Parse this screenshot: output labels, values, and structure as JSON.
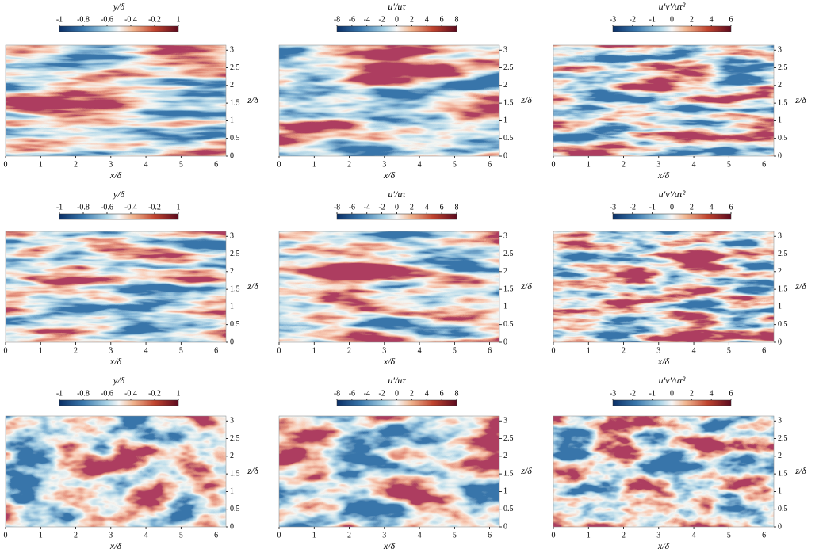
{
  "chart_data": [
    {
      "type": "heatmap",
      "colorbar_title": "y/δ",
      "colorbar_ticks": [
        -1,
        -0.8,
        -0.6,
        -0.4,
        -0.2,
        1
      ],
      "xlabel": "x/δ",
      "ylabel": "z/δ",
      "xlim": [
        0,
        6.28
      ],
      "ylim": [
        0,
        3.14
      ],
      "xticks": [
        0,
        1,
        2,
        3,
        4,
        5,
        6
      ],
      "yticks": [
        0,
        0.5,
        1,
        1.5,
        2,
        2.5,
        3
      ]
    },
    {
      "type": "heatmap",
      "colorbar_title": "u′/uτ",
      "colorbar_ticks": [
        -8,
        -6,
        -4,
        -2,
        0,
        2,
        4,
        6,
        8
      ],
      "xlabel": "x/δ",
      "ylabel": "z/δ",
      "xlim": [
        0,
        6.28
      ],
      "ylim": [
        0,
        3.14
      ],
      "xticks": [
        0,
        1,
        2,
        3,
        4,
        5,
        6
      ],
      "yticks": [
        0,
        0.5,
        1,
        1.5,
        2,
        2.5,
        3
      ]
    },
    {
      "type": "heatmap",
      "colorbar_title": "u′v′/uτ²",
      "colorbar_ticks": [
        -3,
        -2,
        -1,
        0,
        2,
        4,
        6
      ],
      "xlabel": "x/δ",
      "ylabel": "z/δ",
      "xlim": [
        0,
        6.28
      ],
      "ylim": [
        0,
        3.14
      ],
      "xticks": [
        0,
        1,
        2,
        3,
        4,
        5,
        6
      ],
      "yticks": [
        0,
        0.5,
        1,
        1.5,
        2,
        2.5,
        3
      ]
    },
    {
      "type": "heatmap",
      "colorbar_title": "y/δ",
      "colorbar_ticks": [
        -1,
        -0.8,
        -0.6,
        -0.4,
        -0.2,
        1
      ],
      "xlabel": "x/δ",
      "ylabel": "z/δ",
      "xlim": [
        0,
        6.28
      ],
      "ylim": [
        0,
        3.14
      ],
      "xticks": [
        0,
        1,
        2,
        3,
        4,
        5,
        6
      ],
      "yticks": [
        0,
        0.5,
        1,
        1.5,
        2,
        2.5,
        3
      ]
    },
    {
      "type": "heatmap",
      "colorbar_title": "u′/uτ",
      "colorbar_ticks": [
        -8,
        -6,
        -4,
        -2,
        0,
        2,
        4,
        6,
        8
      ],
      "xlabel": "x/δ",
      "ylabel": "z/δ",
      "xlim": [
        0,
        6.28
      ],
      "ylim": [
        0,
        3.14
      ],
      "xticks": [
        0,
        1,
        2,
        3,
        4,
        5,
        6
      ],
      "yticks": [
        0,
        0.5,
        1,
        1.5,
        2,
        2.5,
        3
      ]
    },
    {
      "type": "heatmap",
      "colorbar_title": "u′v′/uτ²",
      "colorbar_ticks": [
        -3,
        -2,
        -1,
        0,
        2,
        4,
        6
      ],
      "xlabel": "x/δ",
      "ylabel": "z/δ",
      "xlim": [
        0,
        6.28
      ],
      "ylim": [
        0,
        3.14
      ],
      "xticks": [
        0,
        1,
        2,
        3,
        4,
        5,
        6
      ],
      "yticks": [
        0,
        0.5,
        1,
        1.5,
        2,
        2.5,
        3
      ]
    },
    {
      "type": "heatmap",
      "colorbar_title": "y/δ",
      "colorbar_ticks": [
        -1,
        -0.8,
        -0.6,
        -0.4,
        -0.2,
        1
      ],
      "xlabel": "x/δ",
      "ylabel": "z/δ",
      "xlim": [
        0,
        6.28
      ],
      "ylim": [
        0,
        3.14
      ],
      "xticks": [
        0,
        1,
        2,
        3,
        4,
        5,
        6
      ],
      "yticks": [
        0,
        0.5,
        1,
        1.5,
        2,
        2.5,
        3
      ]
    },
    {
      "type": "heatmap",
      "colorbar_title": "u′/uτ",
      "colorbar_ticks": [
        -8,
        -6,
        -4,
        -2,
        0,
        2,
        4,
        6,
        8
      ],
      "xlabel": "x/δ",
      "ylabel": "z/δ",
      "xlim": [
        0,
        6.28
      ],
      "ylim": [
        0,
        3.14
      ],
      "xticks": [
        0,
        1,
        2,
        3,
        4,
        5,
        6
      ],
      "yticks": [
        0,
        0.5,
        1,
        1.5,
        2,
        2.5,
        3
      ]
    },
    {
      "type": "heatmap",
      "colorbar_title": "u′v′/uτ²",
      "colorbar_ticks": [
        -3,
        -2,
        -1,
        0,
        2,
        4,
        6
      ],
      "xlabel": "x/δ",
      "ylabel": "z/δ",
      "xlim": [
        0,
        6.28
      ],
      "ylim": [
        0,
        3.14
      ],
      "xticks": [
        0,
        1,
        2,
        3,
        4,
        5,
        6
      ],
      "yticks": [
        0,
        0.5,
        1,
        1.5,
        2,
        2.5,
        3
      ]
    }
  ]
}
